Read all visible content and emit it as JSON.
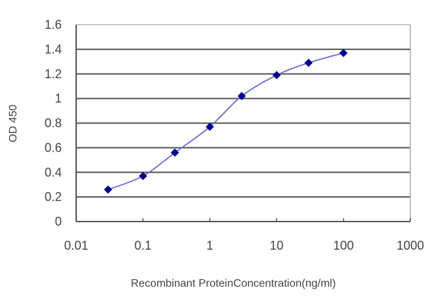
{
  "chart_data": {
    "type": "line",
    "title": "",
    "xlabel": "Recombinant ProteinConcentration(ng/ml)",
    "ylabel": "OD 450",
    "xscale": "log",
    "xlim": [
      0.01,
      1000
    ],
    "ylim": [
      0,
      1.6
    ],
    "x_ticks": [
      "0.01",
      "0.1",
      "1",
      "10",
      "100",
      "1000"
    ],
    "y_ticks": [
      "0",
      "0.2",
      "0.4",
      "0.6",
      "0.8",
      "1",
      "1.2",
      "1.4",
      "1.6"
    ],
    "grid": "horizontal",
    "legend": "none",
    "series": [
      {
        "name": "OD 450",
        "color": "#00008B",
        "line_color": "#6a6ad0",
        "marker": "diamond",
        "x": [
          0.03,
          0.1,
          0.3,
          1,
          3,
          10,
          30,
          100
        ],
        "values": [
          0.26,
          0.37,
          0.56,
          0.77,
          1.02,
          1.19,
          1.29,
          1.37
        ]
      }
    ]
  },
  "colors": {
    "gridline": "#555555",
    "axis": "#555555",
    "frame_top": "#c8c8c8",
    "marker": "#00008B"
  }
}
